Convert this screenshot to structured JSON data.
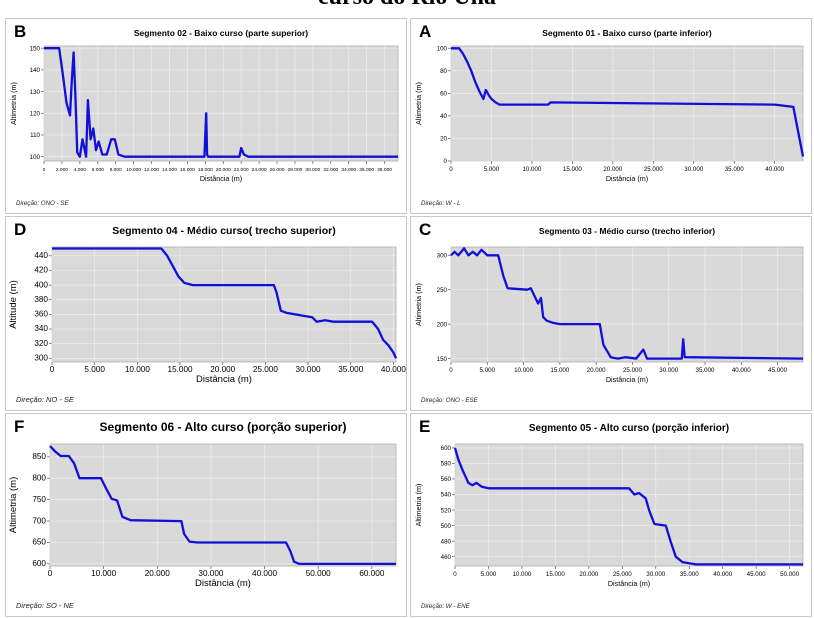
{
  "page_title": "curso do Rio Una",
  "chart_data": [
    {
      "type": "line",
      "letter": "B",
      "title": "Segmento 02 - Baixo curso (parte superior)",
      "xlabel": "Distância (m)",
      "ylabel": "Altimetria (m)",
      "direction": "Direção: ONO - SE",
      "xlim": [
        0,
        39500
      ],
      "ylim": [
        98,
        151
      ],
      "xticks": [
        0,
        2000,
        4000,
        6000,
        8000,
        10000,
        12000,
        14000,
        16000,
        18000,
        20000,
        22000,
        24000,
        26000,
        28000,
        30000,
        32000,
        34000,
        36000,
        38000
      ],
      "xtick_labels": [
        "0",
        "2.000",
        "4.000",
        "6.000",
        "8.000",
        "10.000",
        "12.000",
        "14.000",
        "16.000",
        "18.000",
        "20.000",
        "22.000",
        "24.000",
        "26.000",
        "28.000",
        "30.000",
        "32.000",
        "34.000",
        "36.000",
        "38.000"
      ],
      "yticks": [
        100,
        110,
        120,
        130,
        140,
        150
      ],
      "ytick_labels": [
        "100",
        "110",
        "120",
        "130",
        "140",
        "150"
      ],
      "x": [
        0,
        1700,
        2100,
        2500,
        2900,
        3100,
        3300,
        3500,
        3700,
        4000,
        4300,
        4500,
        4700,
        4900,
        5200,
        5500,
        5800,
        6100,
        6500,
        7000,
        7500,
        7900,
        8300,
        9000,
        17900,
        18100,
        18200,
        18300,
        18500,
        21800,
        22000,
        22300,
        22800,
        39500
      ],
      "y": [
        150,
        150,
        138,
        125,
        119,
        135,
        148,
        128,
        102,
        100,
        108,
        104,
        100,
        126,
        108,
        113,
        103,
        107,
        101,
        101,
        108,
        108,
        101,
        100,
        100,
        120,
        101,
        100,
        100,
        100,
        104,
        101,
        100,
        100
      ]
    },
    {
      "type": "line",
      "letter": "A",
      "title": "Segmento 01 - Baixo curso (parte inferior)",
      "xlabel": "Distância (m)",
      "ylabel": "Altimetria (m)",
      "direction": "Direção: W - L",
      "xlim": [
        0,
        43500
      ],
      "ylim": [
        0,
        102
      ],
      "xticks": [
        0,
        5000,
        10000,
        15000,
        20000,
        25000,
        30000,
        35000,
        40000
      ],
      "xtick_labels": [
        "0",
        "5.000",
        "10.000",
        "15.000",
        "20.000",
        "25.000",
        "30.000",
        "35.000",
        "40.000"
      ],
      "yticks": [
        0,
        20,
        40,
        60,
        80,
        100
      ],
      "ytick_labels": [
        "0",
        "20",
        "40",
        "60",
        "80",
        "100"
      ],
      "x": [
        0,
        1000,
        1500,
        2000,
        2500,
        3000,
        3500,
        4000,
        4300,
        4700,
        5000,
        5500,
        6000,
        12000,
        12300,
        40000,
        42300,
        43500
      ],
      "y": [
        100,
        100,
        95,
        88,
        80,
        70,
        62,
        55,
        63,
        58,
        55,
        52,
        50,
        50,
        52,
        50,
        48,
        4
      ]
    },
    {
      "type": "line",
      "letter": "D",
      "title": "Segmento 04 - Médio curso( trecho superior)",
      "xlabel": "Distância (m)",
      "ylabel": "Altitude (m)",
      "direction": "Direção: NO - SE",
      "xlim": [
        0,
        40300
      ],
      "ylim": [
        295,
        452
      ],
      "xticks": [
        0,
        5000,
        10000,
        15000,
        20000,
        25000,
        30000,
        35000,
        40000
      ],
      "xtick_labels": [
        "0",
        "5.000",
        "10.000",
        "15.000",
        "20.000",
        "25.000",
        "30.000",
        "35.000",
        "40.000"
      ],
      "yticks": [
        300,
        320,
        340,
        360,
        380,
        400,
        420,
        440
      ],
      "ytick_labels": [
        "300",
        "320",
        "340",
        "360",
        "380",
        "400",
        "420",
        "440"
      ],
      "x": [
        0,
        12800,
        13500,
        14200,
        14800,
        15500,
        16500,
        26000,
        26300,
        26800,
        27500,
        28500,
        29500,
        30500,
        31000,
        32000,
        33000,
        37500,
        38200,
        38800,
        39400,
        40000,
        40300
      ],
      "y": [
        450,
        450,
        440,
        425,
        412,
        403,
        400,
        400,
        390,
        365,
        362,
        360,
        358,
        356,
        350,
        352,
        350,
        350,
        340,
        325,
        318,
        308,
        300
      ]
    },
    {
      "type": "line",
      "letter": "C",
      "title": "Segmento 03 - Médio curso (trecho inferior)",
      "xlabel": "Distância (m)",
      "ylabel": "Altimetria (m)",
      "direction": "Direção: ONO - ESE",
      "xlim": [
        0,
        48500
      ],
      "ylim": [
        145,
        312
      ],
      "xticks": [
        0,
        5000,
        10000,
        15000,
        20000,
        25000,
        30000,
        35000,
        40000,
        45000
      ],
      "xtick_labels": [
        "0",
        "5.000",
        "10.000",
        "15.000",
        "20.000",
        "25.000",
        "30.000",
        "35.000",
        "40.000",
        "45.000"
      ],
      "yticks": [
        150,
        200,
        250,
        300
      ],
      "ytick_labels": [
        "150",
        "200",
        "250",
        "300"
      ],
      "x": [
        0,
        500,
        1000,
        1800,
        2400,
        3000,
        3600,
        4200,
        5000,
        6500,
        7200,
        7800,
        10500,
        11000,
        12000,
        12400,
        12700,
        13200,
        14000,
        15000,
        20500,
        21000,
        22000,
        23000,
        24000,
        25500,
        26500,
        27000,
        31800,
        32000,
        32200,
        48500
      ],
      "y": [
        300,
        305,
        300,
        310,
        300,
        305,
        300,
        308,
        300,
        300,
        270,
        252,
        250,
        252,
        230,
        238,
        210,
        205,
        202,
        200,
        200,
        170,
        152,
        150,
        152,
        150,
        163,
        150,
        150,
        178,
        152,
        150
      ]
    },
    {
      "type": "line",
      "letter": "F",
      "title": "Segmento 06 - Alto curso (porção superior)",
      "xlabel": "Distância (m)",
      "ylabel": "Altimetria (m)",
      "direction": "Direção: SO - NE",
      "xlim": [
        0,
        64500
      ],
      "ylim": [
        595,
        880
      ],
      "xticks": [
        0,
        10000,
        20000,
        30000,
        40000,
        50000,
        60000
      ],
      "xtick_labels": [
        "0",
        "10.000",
        "20.000",
        "30.000",
        "40.000",
        "50.000",
        "60.000"
      ],
      "yticks": [
        600,
        650,
        700,
        750,
        800,
        850
      ],
      "ytick_labels": [
        "600",
        "650",
        "700",
        "750",
        "800",
        "850"
      ],
      "x": [
        0,
        1000,
        2000,
        3500,
        4500,
        5500,
        9500,
        10500,
        11500,
        12500,
        13500,
        15000,
        24500,
        25000,
        26000,
        27500,
        44000,
        44800,
        45500,
        46500,
        64500
      ],
      "y": [
        875,
        862,
        852,
        852,
        835,
        800,
        800,
        775,
        752,
        748,
        710,
        702,
        700,
        670,
        652,
        650,
        650,
        630,
        605,
        600,
        600
      ]
    },
    {
      "type": "line",
      "letter": "E",
      "title": "Segmento 05 - Alto curso (porção inferior)",
      "xlabel": "Distância (m)",
      "ylabel": "Altimetria (m)",
      "direction": "Direção: W - ENE",
      "xlim": [
        0,
        52000
      ],
      "ylim": [
        448,
        605
      ],
      "xticks": [
        0,
        5000,
        10000,
        15000,
        20000,
        25000,
        30000,
        35000,
        40000,
        45000,
        50000
      ],
      "xtick_labels": [
        "0",
        "5.000",
        "10.000",
        "15.000",
        "20.000",
        "25.000",
        "30.000",
        "35.000",
        "40.000",
        "45.000",
        "50.000"
      ],
      "yticks": [
        460,
        480,
        500,
        520,
        540,
        560,
        580,
        600
      ],
      "ytick_labels": [
        "460",
        "480",
        "500",
        "520",
        "540",
        "560",
        "580",
        "600"
      ],
      "x": [
        0,
        500,
        1200,
        2000,
        2600,
        3200,
        4000,
        5000,
        26000,
        26800,
        27500,
        28500,
        29000,
        29800,
        31500,
        32200,
        33000,
        34000,
        36000,
        52000
      ],
      "y": [
        600,
        585,
        570,
        555,
        552,
        555,
        550,
        548,
        548,
        540,
        542,
        535,
        520,
        502,
        500,
        480,
        460,
        453,
        450,
        450
      ]
    }
  ]
}
